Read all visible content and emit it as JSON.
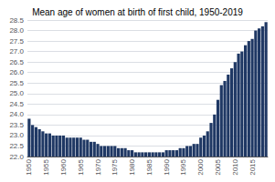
{
  "chart_data": {
    "type": "bar",
    "title": "Mean age of women at birth of first child, 1950-2019",
    "categories": [
      "1950",
      null,
      null,
      null,
      null,
      "1955",
      null,
      null,
      null,
      null,
      "1960",
      null,
      null,
      null,
      null,
      "1965",
      null,
      null,
      null,
      null,
      "1970",
      null,
      null,
      null,
      null,
      "1975",
      null,
      null,
      null,
      null,
      "1980",
      null,
      null,
      null,
      null,
      "1985",
      null,
      null,
      null,
      null,
      "1990",
      null,
      null,
      null,
      null,
      "1995",
      null,
      null,
      null,
      null,
      "2000",
      null,
      null,
      null,
      null,
      "2005",
      null,
      null,
      null,
      null,
      "2010",
      null,
      null,
      null,
      null,
      "2015",
      null,
      null,
      null,
      null
    ],
    "values": [
      23.8,
      23.5,
      23.4,
      23.3,
      23.2,
      23.1,
      23.1,
      23.0,
      23.0,
      23.0,
      23.0,
      22.9,
      22.9,
      22.9,
      22.9,
      22.9,
      22.8,
      22.8,
      22.7,
      22.7,
      22.6,
      22.5,
      22.5,
      22.5,
      22.5,
      22.5,
      22.4,
      22.4,
      22.4,
      22.3,
      22.3,
      22.2,
      22.2,
      22.2,
      22.2,
      22.2,
      22.2,
      22.2,
      22.2,
      22.2,
      22.3,
      22.3,
      22.3,
      22.3,
      22.4,
      22.4,
      22.5,
      22.5,
      22.6,
      22.6,
      22.9,
      23.0,
      23.2,
      23.6,
      24.0,
      24.7,
      25.4,
      25.6,
      25.9,
      26.2,
      26.5,
      26.9,
      27.0,
      27.3,
      27.5,
      27.6,
      28.0,
      28.1,
      28.2,
      28.4
    ],
    "color": "#1f3864",
    "ylim": [
      22.0,
      28.5
    ],
    "yticks": [
      {
        "value": 22.0,
        "label": "22.0"
      },
      22.5,
      {
        "value": 23.0,
        "label": "23.0"
      },
      23.5,
      {
        "value": 24.0,
        "label": "24.0"
      },
      24.5,
      {
        "value": 25.0,
        "label": "25.0"
      },
      25.5,
      {
        "value": 26.0,
        "label": "26.0"
      },
      26.5,
      {
        "value": 27.0,
        "label": "27.0"
      },
      27.5,
      {
        "value": 28.0,
        "label": "28.0"
      },
      28.5
    ],
    "grid": true
  }
}
